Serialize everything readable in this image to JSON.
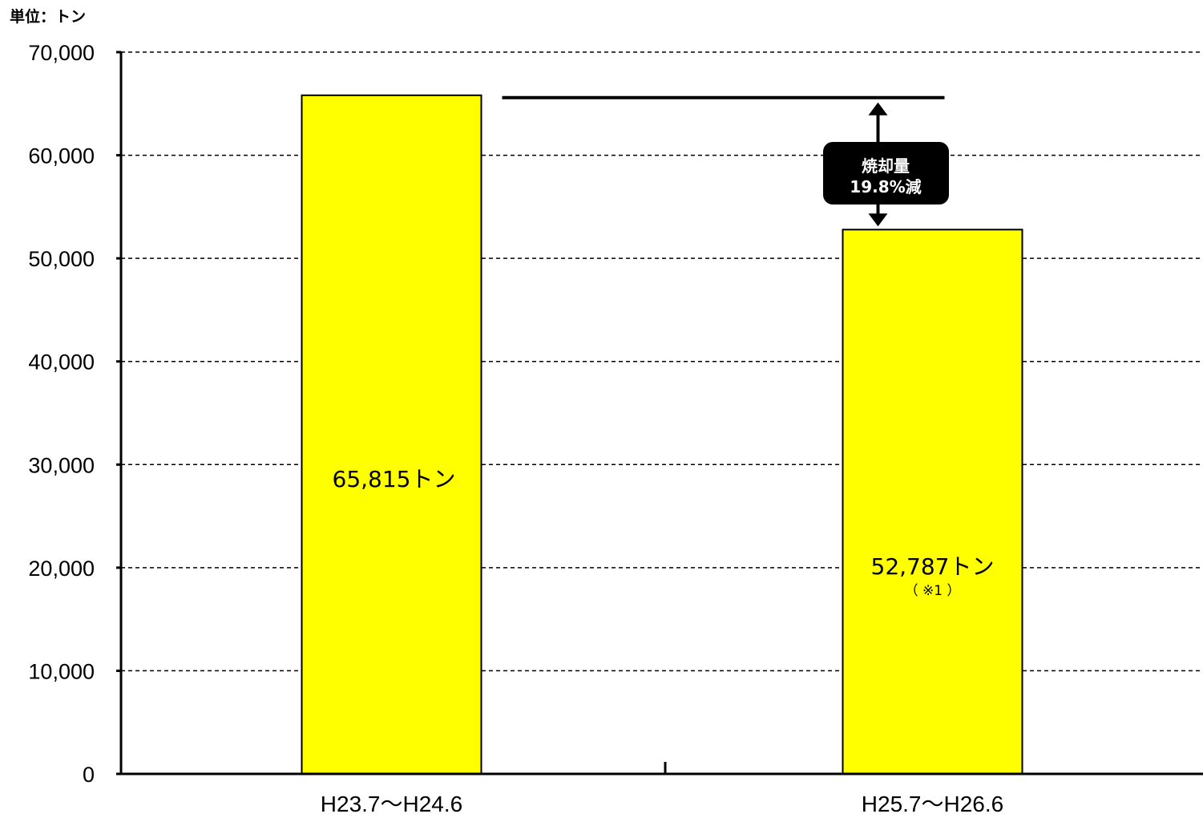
{
  "chart_data": {
    "type": "bar",
    "unit_label": "単位：トン",
    "categories": [
      "H23.7〜H24.6",
      "H25.7〜H26.6"
    ],
    "values": [
      65815,
      52787
    ],
    "value_labels": [
      "65,815トン",
      "52,787トン"
    ],
    "value_notes": [
      "",
      "（ ※1 ）"
    ],
    "ylim": [
      0,
      70000
    ],
    "yticks": [
      0,
      10000,
      20000,
      30000,
      40000,
      50000,
      60000,
      70000
    ],
    "ytick_labels": [
      "0",
      "10,000",
      "20,000",
      "30,000",
      "40,000",
      "50,000",
      "60,000",
      "70,000"
    ],
    "grid": true,
    "bar_color": "#FFFF00",
    "callout": {
      "line1": "焼却量",
      "line2": "19.8%減"
    }
  }
}
